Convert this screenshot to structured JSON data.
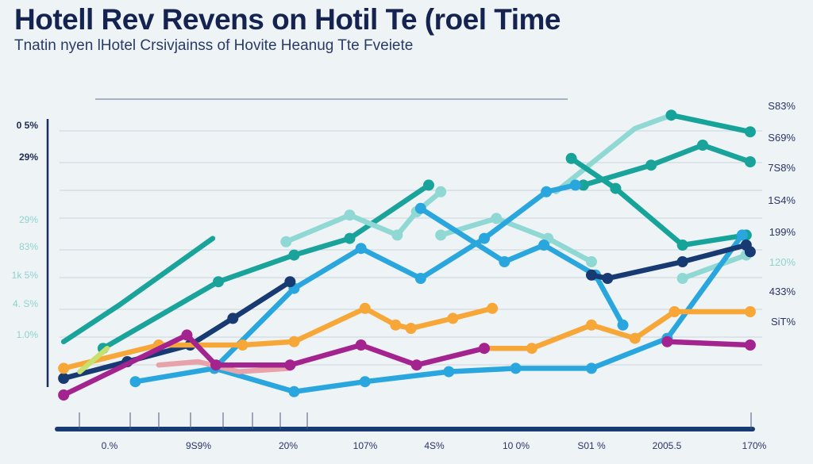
{
  "chart_data": {
    "type": "line",
    "title": "Hotell Rev Revens on Hotil Te (roel Time",
    "subtitle": "Tnatin nyen lHotel Crsivjainss of Hovite Heanug Tte Fveiete",
    "categories": [
      "0.%",
      "9S9%",
      "20%",
      "107%",
      "4S%",
      "10 0%",
      "S01 %",
      "2005.5",
      "170%"
    ],
    "y_ticks_left": [
      {
        "label": "0 5%",
        "color": "#1c2a4f"
      },
      {
        "label": "29%",
        "color": "#1c2a4f"
      },
      {
        "label": "29%",
        "color": "#8fd3cf"
      },
      {
        "label": "83%",
        "color": "#8fd3cf"
      },
      {
        "label": "1k 5%",
        "color": "#8fd3cf"
      },
      {
        "label": "4. S%",
        "color": "#8fd3cf"
      },
      {
        "label": "1.0%",
        "color": "#8fd3cf"
      }
    ],
    "y_ticks_right": [
      {
        "label": "S83%",
        "color": "#2a3566"
      },
      {
        "label": "S69%",
        "color": "#2a3566"
      },
      {
        "label": "7S8%",
        "color": "#2a3566"
      },
      {
        "label": "1S4%",
        "color": "#2a3566"
      },
      {
        "label": "199%",
        "color": "#2a3566"
      },
      {
        "label": "120%",
        "color": "#8fd3cf"
      },
      {
        "label": "433%",
        "color": "#2a3566"
      },
      {
        "label": "SiT%",
        "color": "#2a3566"
      }
    ],
    "xlim": [
      -0.6,
      8.1
    ],
    "ylim": [
      0,
      100
    ],
    "grid": true,
    "legend": "none",
    "series": [
      {
        "color": "#1aa39a",
        "dots": false,
        "points": [
          [
            -0.57,
            26
          ],
          [
            0.12,
            37
          ],
          [
            1.28,
            57
          ]
        ]
      },
      {
        "color": "#1aa39a",
        "dots": true,
        "points": [
          [
            -0.08,
            24
          ],
          [
            1.35,
            44
          ],
          [
            2.29,
            52
          ],
          [
            2.98,
            57
          ],
          [
            3.96,
            73
          ]
        ]
      },
      {
        "color": "#8fd8d4",
        "dots": true,
        "points": [
          [
            2.19,
            56
          ],
          [
            2.98,
            64
          ],
          [
            3.57,
            58
          ],
          [
            3.81,
            65
          ],
          [
            4.11,
            71
          ]
        ]
      },
      {
        "color": "#8fd8d4",
        "dots": false,
        "points": [
          [
            5.54,
            71
          ],
          [
            6.52,
            90
          ],
          [
            6.97,
            94
          ]
        ]
      },
      {
        "color": "#16a39a",
        "dots": true,
        "points": [
          [
            6.97,
            94
          ],
          [
            7.95,
            89
          ]
        ]
      },
      {
        "color": "#16a39a",
        "dots": true,
        "points": [
          [
            5.73,
            81
          ],
          [
            6.28,
            72
          ],
          [
            7.11,
            55
          ],
          [
            7.9,
            58
          ]
        ]
      },
      {
        "color": "#1aa39a",
        "dots": true,
        "points": [
          [
            5.88,
            73
          ],
          [
            6.72,
            79
          ],
          [
            7.36,
            85
          ],
          [
            7.95,
            80
          ]
        ]
      },
      {
        "color": "#8fd8d4",
        "dots": true,
        "points": [
          [
            4.11,
            58
          ],
          [
            4.8,
            63
          ],
          [
            5.44,
            57
          ],
          [
            5.98,
            50
          ]
        ]
      },
      {
        "color": "#8fd8d4",
        "dots": true,
        "points": [
          [
            7.11,
            45
          ],
          [
            7.9,
            52
          ]
        ]
      },
      {
        "color": "#2aa6de",
        "dots": true,
        "points": [
          [
            0.32,
            14
          ],
          [
            1.3,
            18
          ],
          [
            2.29,
            42
          ],
          [
            3.12,
            54
          ],
          [
            3.86,
            45
          ],
          [
            4.65,
            57
          ],
          [
            5.42,
            71
          ],
          [
            5.78,
            73
          ]
        ]
      },
      {
        "color": "#2aa6de",
        "dots": true,
        "points": [
          [
            3.86,
            66
          ],
          [
            4.9,
            50
          ],
          [
            5.39,
            55
          ],
          [
            6.03,
            46
          ],
          [
            6.37,
            31
          ]
        ]
      },
      {
        "color": "#2aa6de",
        "dots": true,
        "points": [
          [
            1.3,
            18
          ],
          [
            2.29,
            11
          ],
          [
            3.17,
            14
          ],
          [
            4.21,
            17
          ],
          [
            5.04,
            18
          ],
          [
            5.98,
            18
          ],
          [
            6.92,
            27
          ],
          [
            7.85,
            58
          ]
        ]
      },
      {
        "color": "#173a73",
        "dots": true,
        "points": [
          [
            -0.57,
            15
          ],
          [
            0.22,
            20
          ],
          [
            1.0,
            25
          ],
          [
            1.53,
            33
          ],
          [
            2.24,
            44
          ]
        ]
      },
      {
        "color": "#173a73",
        "dots": true,
        "points": [
          [
            5.98,
            46
          ],
          [
            6.18,
            45
          ],
          [
            7.11,
            50
          ],
          [
            7.9,
            55
          ],
          [
            7.95,
            53
          ]
        ]
      },
      {
        "color": "#f7a738",
        "dots": true,
        "points": [
          [
            -0.57,
            18
          ],
          [
            0.61,
            25
          ],
          [
            1.65,
            25
          ],
          [
            2.29,
            26
          ],
          [
            3.17,
            36
          ],
          [
            3.55,
            31
          ],
          [
            3.74,
            30
          ],
          [
            4.26,
            33
          ],
          [
            4.75,
            36
          ]
        ]
      },
      {
        "color": "#f7a738",
        "dots": true,
        "points": [
          [
            4.65,
            24
          ],
          [
            5.24,
            24
          ],
          [
            5.98,
            31
          ],
          [
            6.52,
            27
          ],
          [
            7.01,
            35
          ],
          [
            7.95,
            35
          ]
        ]
      },
      {
        "color": "#e8a3aa",
        "dots": false,
        "points": [
          [
            0.61,
            19
          ],
          [
            1.1,
            20
          ],
          [
            1.6,
            17
          ],
          [
            2.24,
            18
          ]
        ]
      },
      {
        "color": "#c8e06c",
        "dots": false,
        "points": [
          [
            -0.37,
            17
          ],
          [
            -0.03,
            24
          ]
        ]
      },
      {
        "color": "#a3238f",
        "dots": true,
        "points": [
          [
            -0.57,
            10
          ],
          [
            0.96,
            28
          ],
          [
            1.32,
            19
          ],
          [
            2.24,
            19
          ],
          [
            3.12,
            25
          ],
          [
            3.81,
            19
          ],
          [
            4.65,
            24
          ]
        ]
      },
      {
        "color": "#a3238f",
        "dots": true,
        "points": [
          [
            6.92,
            26
          ],
          [
            7.95,
            25
          ]
        ]
      }
    ]
  }
}
